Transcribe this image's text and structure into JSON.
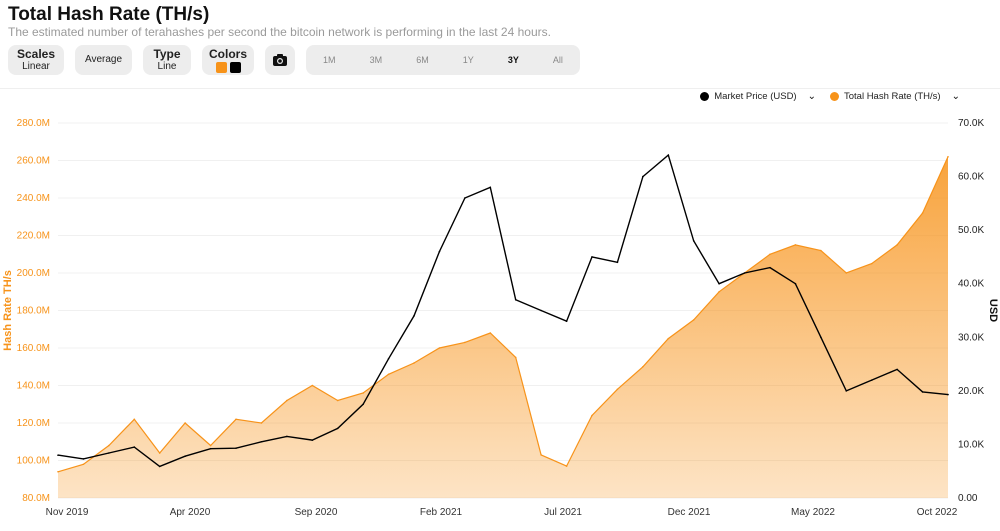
{
  "header": {
    "title": "Total Hash Rate (TH/s)",
    "subtitle": "The estimated number of terahashes per second the bitcoin network is performing in the last 24 hours."
  },
  "controls": {
    "scales_label": "Scales",
    "scales_value": "Linear",
    "average_label": "Average",
    "type_label": "Type",
    "type_value": "Line",
    "colors_label": "Colors",
    "ranges": [
      "1M",
      "3M",
      "6M",
      "1Y",
      "3Y",
      "All"
    ],
    "active_range": "3Y"
  },
  "colors": {
    "hash": "#f7931a",
    "price": "#000000",
    "hash_label": "#f7931a",
    "grid": "#f0f0f0"
  },
  "icons": {
    "camera": "camera-icon"
  },
  "chart_data": {
    "type": "area",
    "ylabel": "Hash Rate TH/s",
    "y2label": "USD",
    "ylim": [
      80,
      280
    ],
    "y_ticks": [
      "80.0M",
      "100.0M",
      "120.0M",
      "140.0M",
      "160.0M",
      "180.0M",
      "200.0M",
      "220.0M",
      "240.0M",
      "260.0M",
      "280.0M"
    ],
    "y2lim": [
      0,
      70000
    ],
    "y2_ticks": [
      "0.00",
      "10.0K",
      "20.0K",
      "30.0K",
      "40.0K",
      "50.0K",
      "60.0K",
      "70.0K"
    ],
    "x_ticks": [
      "Nov 2019",
      "Apr 2020",
      "Sep 2020",
      "Feb 2021",
      "Jul 2021",
      "Dec 2021",
      "May 2022",
      "Oct 2022"
    ],
    "series": [
      {
        "name": "Total Hash Rate (TH/s)",
        "axis": "left",
        "style": "area",
        "x": [
          "2019-11",
          "2019-12",
          "2020-01",
          "2020-02",
          "2020-03",
          "2020-04",
          "2020-05",
          "2020-06",
          "2020-07",
          "2020-08",
          "2020-09",
          "2020-10",
          "2020-11",
          "2020-12",
          "2021-01",
          "2021-02",
          "2021-03",
          "2021-04",
          "2021-05",
          "2021-06",
          "2021-07",
          "2021-08",
          "2021-09",
          "2021-10",
          "2021-11",
          "2021-12",
          "2022-01",
          "2022-02",
          "2022-03",
          "2022-04",
          "2022-05",
          "2022-06",
          "2022-07",
          "2022-08",
          "2022-09",
          "2022-10"
        ],
        "values": [
          94,
          98,
          108,
          122,
          104,
          120,
          108,
          122,
          120,
          132,
          140,
          132,
          136,
          146,
          152,
          160,
          163,
          168,
          155,
          103,
          97,
          124,
          138,
          150,
          165,
          175,
          190,
          200,
          210,
          215,
          212,
          200,
          205,
          215,
          232,
          262
        ]
      },
      {
        "name": "Market Price (USD)",
        "axis": "right",
        "style": "line",
        "x": [
          "2019-11",
          "2019-12",
          "2020-01",
          "2020-02",
          "2020-03",
          "2020-04",
          "2020-05",
          "2020-06",
          "2020-07",
          "2020-08",
          "2020-09",
          "2020-10",
          "2020-11",
          "2020-12",
          "2021-01",
          "2021-02",
          "2021-03",
          "2021-04",
          "2021-05",
          "2021-06",
          "2021-07",
          "2021-08",
          "2021-09",
          "2021-10",
          "2021-11",
          "2021-12",
          "2022-01",
          "2022-02",
          "2022-03",
          "2022-04",
          "2022-05",
          "2022-06",
          "2022-07",
          "2022-08",
          "2022-09",
          "2022-10"
        ],
        "values": [
          8000,
          7300,
          8400,
          9500,
          5900,
          7800,
          9200,
          9300,
          10500,
          11500,
          10800,
          13000,
          17500,
          26000,
          34000,
          46000,
          56000,
          58000,
          37000,
          35000,
          33000,
          45000,
          44000,
          60000,
          64000,
          48000,
          40000,
          42000,
          43000,
          40000,
          30000,
          20000,
          22000,
          24000,
          19800,
          19300
        ]
      }
    ]
  }
}
